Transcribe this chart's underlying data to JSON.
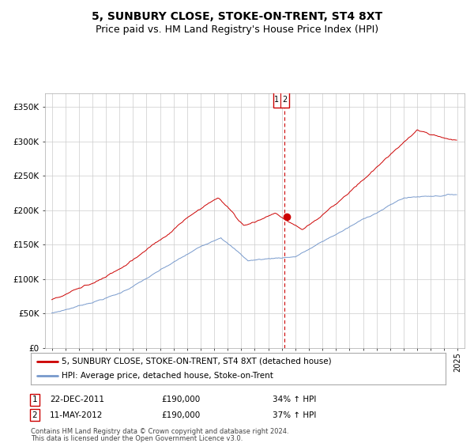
{
  "title": "5, SUNBURY CLOSE, STOKE-ON-TRENT, ST4 8XT",
  "subtitle": "Price paid vs. HM Land Registry's House Price Index (HPI)",
  "ylabel_ticks": [
    "£0",
    "£50K",
    "£100K",
    "£150K",
    "£200K",
    "£250K",
    "£300K",
    "£350K"
  ],
  "ytick_values": [
    0,
    50000,
    100000,
    150000,
    200000,
    250000,
    300000,
    350000
  ],
  "ylim": [
    0,
    370000
  ],
  "xlim_start": 1994.5,
  "xlim_end": 2025.5,
  "hpi_color": "#7799cc",
  "price_color": "#cc0000",
  "vertical_line_color": "#cc0000",
  "annotation_box_color": "#cc0000",
  "grid_color": "#cccccc",
  "background_color": "#ffffff",
  "legend_label_price": "5, SUNBURY CLOSE, STOKE-ON-TRENT, ST4 8XT (detached house)",
  "legend_label_hpi": "HPI: Average price, detached house, Stoke-on-Trent",
  "transaction1_label": "1",
  "transaction1_date": "22-DEC-2011",
  "transaction1_price": "£190,000",
  "transaction1_hpi": "34% ↑ HPI",
  "transaction2_label": "2",
  "transaction2_date": "11-MAY-2012",
  "transaction2_price": "£190,000",
  "transaction2_hpi": "37% ↑ HPI",
  "footnote1": "Contains HM Land Registry data © Crown copyright and database right 2024.",
  "footnote2": "This data is licensed under the Open Government Licence v3.0.",
  "title_fontsize": 10,
  "subtitle_fontsize": 9
}
